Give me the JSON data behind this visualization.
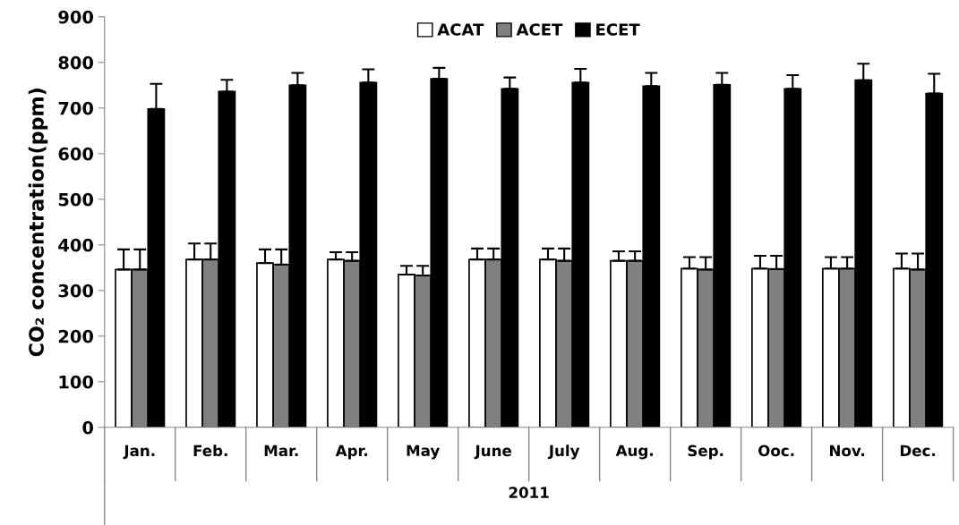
{
  "chart_data": {
    "type": "bar",
    "xlabel": "2011",
    "ylabel": "CO₂ concentration(ppm)",
    "categories": [
      "Jan.",
      "Feb.",
      "Mar.",
      "Apr.",
      "May",
      "June",
      "July",
      "Aug.",
      "Sep.",
      "Ooc.",
      "Nov.",
      "Dec."
    ],
    "series": [
      {
        "name": "ACAT",
        "color": "#ffffff",
        "values": [
          346,
          368,
          360,
          368,
          335,
          368,
          368,
          365,
          348,
          348,
          348,
          348
        ],
        "errors": [
          [
            346,
            390
          ],
          [
            368,
            403
          ],
          [
            360,
            390
          ],
          [
            368,
            384
          ],
          [
            335,
            354
          ],
          [
            368,
            392
          ],
          [
            368,
            392
          ],
          [
            365,
            386
          ],
          [
            348,
            373
          ],
          [
            348,
            376
          ],
          [
            348,
            373
          ],
          [
            348,
            381
          ]
        ]
      },
      {
        "name": "ACET",
        "color": "#808080",
        "values": [
          346,
          368,
          357,
          365,
          333,
          368,
          365,
          365,
          346,
          347,
          348,
          346
        ],
        "errors": [
          [
            346,
            390
          ],
          [
            368,
            403
          ],
          [
            357,
            390
          ],
          [
            365,
            384
          ],
          [
            333,
            354
          ],
          [
            368,
            392
          ],
          [
            365,
            392
          ],
          [
            365,
            386
          ],
          [
            346,
            373
          ],
          [
            347,
            376
          ],
          [
            348,
            373
          ],
          [
            346,
            381
          ]
        ]
      },
      {
        "name": "ECET",
        "color": "#000000",
        "values": [
          698,
          736,
          750,
          756,
          764,
          742,
          756,
          748,
          751,
          742,
          761,
          732
        ],
        "errors": [
          [
            698,
            753
          ],
          [
            736,
            762
          ],
          [
            750,
            777
          ],
          [
            756,
            785
          ],
          [
            764,
            788
          ],
          [
            742,
            767
          ],
          [
            756,
            786
          ],
          [
            748,
            777
          ],
          [
            751,
            777
          ],
          [
            742,
            772
          ],
          [
            761,
            797
          ],
          [
            732,
            775
          ]
        ]
      }
    ],
    "ylim": [
      0,
      900
    ],
    "yticks": [
      0,
      100,
      200,
      300,
      400,
      500,
      600,
      700,
      800,
      900
    ],
    "grid": false,
    "legend": "top"
  }
}
